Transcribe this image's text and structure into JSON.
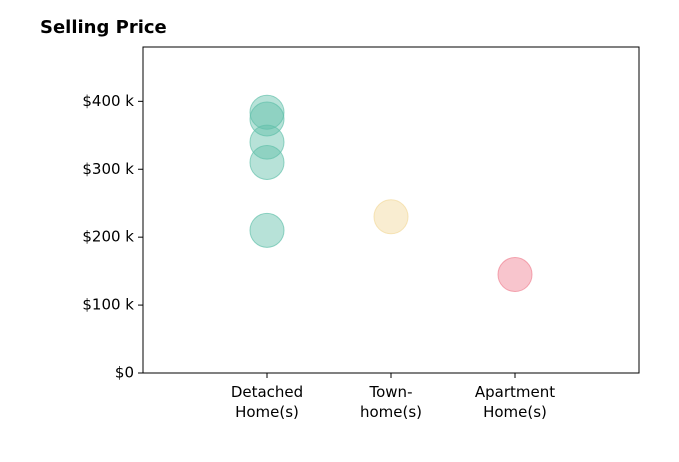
{
  "chart_data": {
    "type": "scatter",
    "title": "Selling Price",
    "categories": [
      "Detached\nHome(s)",
      "Town-\nhome(s)",
      "Apartment\nHome(s)"
    ],
    "values": [
      [
        384,
        374,
        340,
        310,
        210
      ],
      [
        230
      ],
      [
        145
      ]
    ],
    "colors": [
      "#5fbfa9",
      "#f2d89a",
      "#ef7f90"
    ],
    "opacity": 0.45,
    "ylim": [
      0,
      480
    ],
    "yticks": [
      {
        "value": 0,
        "label": "$0"
      },
      {
        "value": 100,
        "label": "$100 k"
      },
      {
        "value": 200,
        "label": "$200 k"
      },
      {
        "value": 300,
        "label": "$300 k"
      },
      {
        "value": 400,
        "label": "$400 k"
      }
    ]
  }
}
